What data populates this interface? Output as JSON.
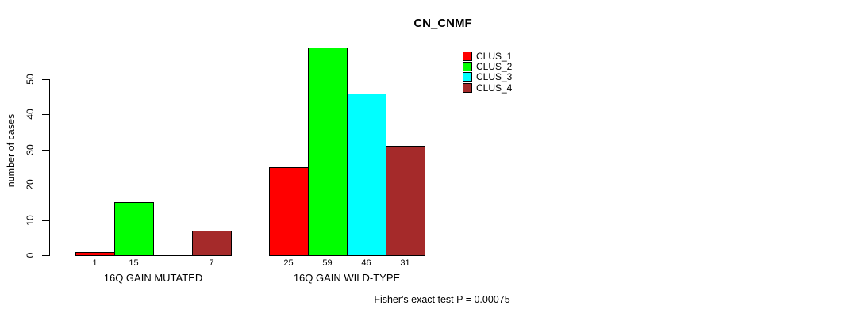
{
  "chart_data": {
    "type": "bar",
    "title": "CN_CNMF",
    "ylabel": "number of cases",
    "xlabel": "",
    "ylim": [
      0,
      50
    ],
    "yticks": [
      0,
      10,
      20,
      30,
      40,
      50
    ],
    "grid": false,
    "legend_position": "top-right",
    "categories": [
      "16Q GAIN MUTATED",
      "16Q GAIN WILD-TYPE"
    ],
    "series": [
      {
        "name": "CLUS_1",
        "color": "#FF0000",
        "values": [
          1,
          25
        ]
      },
      {
        "name": "CLUS_2",
        "color": "#00FF00",
        "values": [
          15,
          59
        ]
      },
      {
        "name": "CLUS_3",
        "color": "#00FFFF",
        "values": [
          0,
          46
        ]
      },
      {
        "name": "CLUS_4",
        "color": "#A52A2A",
        "values": [
          7,
          31
        ]
      }
    ],
    "bar_labels": [
      [
        "1",
        "15",
        "",
        "7"
      ],
      [
        "25",
        "59",
        "46",
        "31"
      ]
    ],
    "annotation": "Fisher's exact test P = 0.00075"
  }
}
